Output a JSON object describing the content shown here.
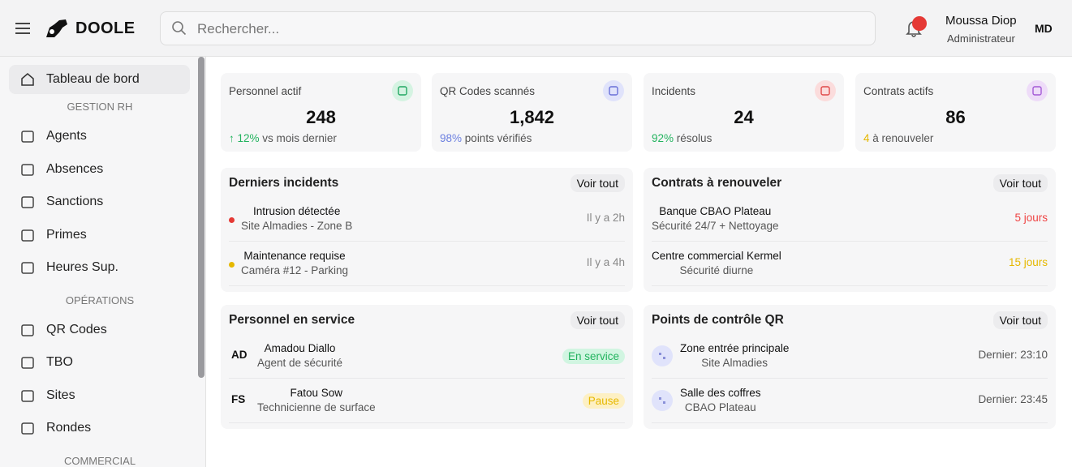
{
  "header": {
    "brand": "DOOLE",
    "search_placeholder": "Rechercher...",
    "user_name": "Moussa Diop",
    "user_role": "Administrateur",
    "user_initials": "MD"
  },
  "sidebar": {
    "home": "Tableau de bord",
    "groups": [
      {
        "title": "GESTION RH",
        "items": [
          "Agents",
          "Absences",
          "Sanctions",
          "Primes",
          "Heures Sup."
        ]
      },
      {
        "title": "OPÉRATIONS",
        "items": [
          "QR Codes",
          "TBO",
          "Sites",
          "Rondes"
        ]
      },
      {
        "title": "COMMERCIAL",
        "items": []
      }
    ]
  },
  "stats": [
    {
      "title": "Personnel actif",
      "value": "248",
      "highlight": "↑ 12%",
      "note": "vs mois dernier"
    },
    {
      "title": "QR Codes scannés",
      "value": "1,842",
      "highlight": "98%",
      "note": "points vérifiés"
    },
    {
      "title": "Incidents",
      "value": "24",
      "highlight": "92%",
      "note": "résolus"
    },
    {
      "title": "Contrats actifs",
      "value": "86",
      "highlight": "4",
      "note": "à renouveler"
    }
  ],
  "panels": [
    {
      "title": "Derniers incidents",
      "action": "Voir tout",
      "rows": [
        {
          "title": "Intrusion détectée",
          "subtitle": "Site Almadies - Zone B",
          "meta": "Il y a 2h"
        },
        {
          "title": "Maintenance requise",
          "subtitle": "Caméra #12 - Parking",
          "meta": "Il y a 4h"
        }
      ]
    },
    {
      "title": "Contrats à renouveler",
      "action": "Voir tout",
      "rows": [
        {
          "title": "Banque CBAO Plateau",
          "subtitle": "Sécurité 24/7 + Nettoyage",
          "meta": "5 jours"
        },
        {
          "title": "Centre commercial Kermel",
          "subtitle": "Sécurité diurne",
          "meta": "15 jours"
        }
      ]
    },
    {
      "title": "Personnel en service",
      "action": "Voir tout",
      "rows": [
        {
          "initials": "AD",
          "title": "Amadou Diallo",
          "subtitle": "Agent de sécurité",
          "meta": "En service"
        },
        {
          "initials": "FS",
          "title": "Fatou Sow",
          "subtitle": "Technicienne de surface",
          "meta": "Pause"
        }
      ]
    },
    {
      "title": "Points de contrôle QR",
      "action": "Voir tout",
      "rows": [
        {
          "title": "Zone entrée principale",
          "subtitle": "Site Almadies",
          "meta": "Dernier: 23:10"
        },
        {
          "title": "Salle des coffres",
          "subtitle": "CBAO Plateau",
          "meta": "Dernier: 23:45"
        }
      ]
    }
  ]
}
